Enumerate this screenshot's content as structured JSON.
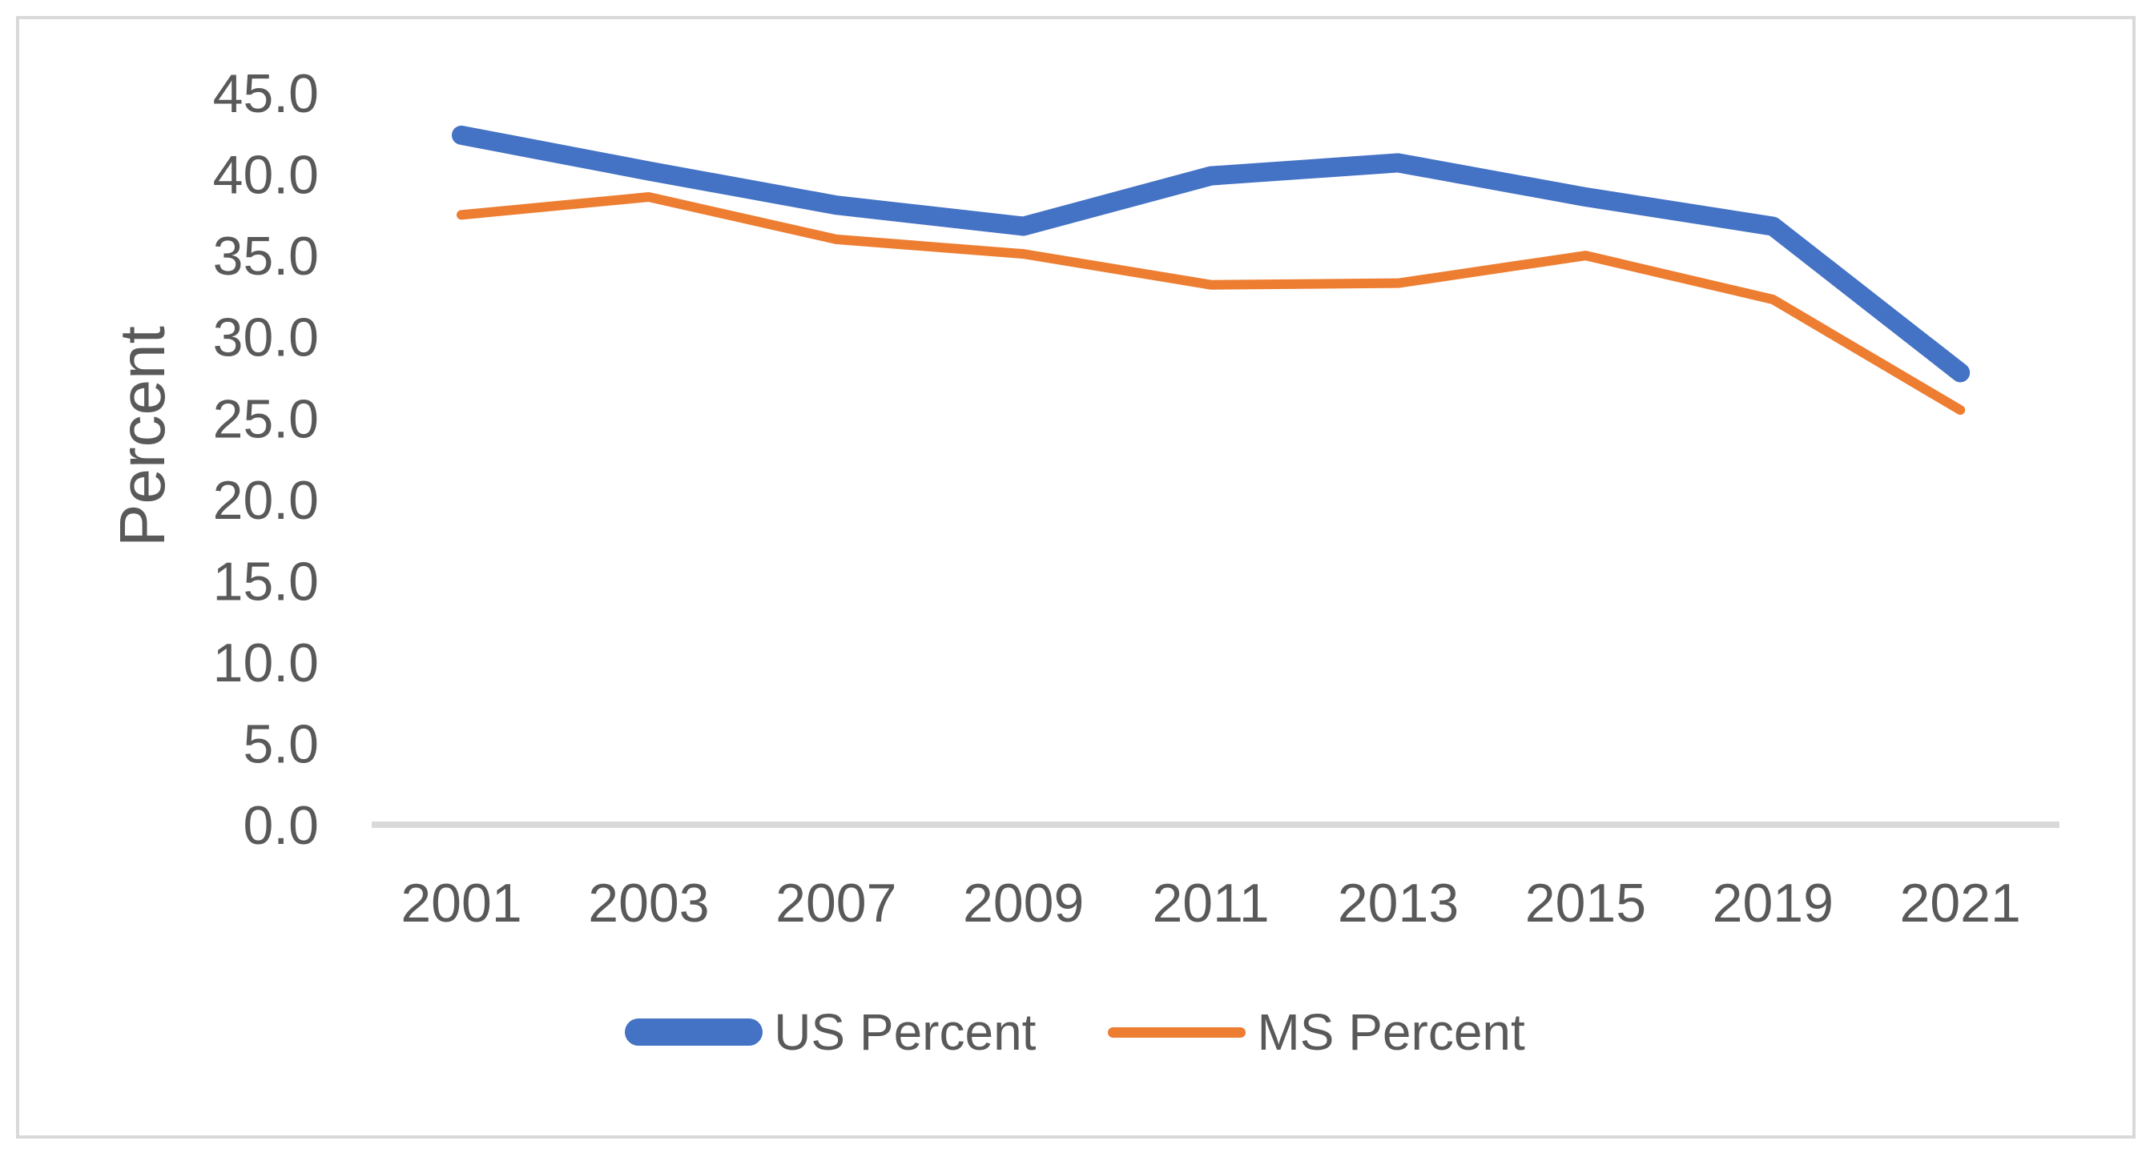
{
  "figure": {
    "background_color": "#FFFFFF",
    "border_color": "#D9D9D9"
  },
  "chart_data": {
    "type": "line",
    "title": "",
    "categories": [
      "2001",
      "2003",
      "2007",
      "2009",
      "2011",
      "2013",
      "2015",
      "2019",
      "2021"
    ],
    "series": [
      {
        "name": "US Percent",
        "color": "#4472C4",
        "stroke_width": 24,
        "values": [
          42.4,
          40.2,
          38.1,
          36.8,
          39.9,
          40.7,
          38.6,
          36.8,
          27.8
        ]
      },
      {
        "name": "MS Percent",
        "color": "#ED7D31",
        "stroke_width": 12,
        "values": [
          37.5,
          38.6,
          36.0,
          35.1,
          33.2,
          33.3,
          35.0,
          32.3,
          25.5
        ]
      }
    ],
    "xlabel": "",
    "ylabel": "Percent",
    "ylim": [
      0,
      45
    ],
    "ytick_labels": [
      "0.0",
      "5.0",
      "10.0",
      "15.0",
      "20.0",
      "25.0",
      "30.0",
      "35.0",
      "40.0",
      "45.0"
    ],
    "grid": false,
    "legend_position": "bottom",
    "axis_text_color": "#595959",
    "axis_line_color": "#D9D9D9"
  }
}
